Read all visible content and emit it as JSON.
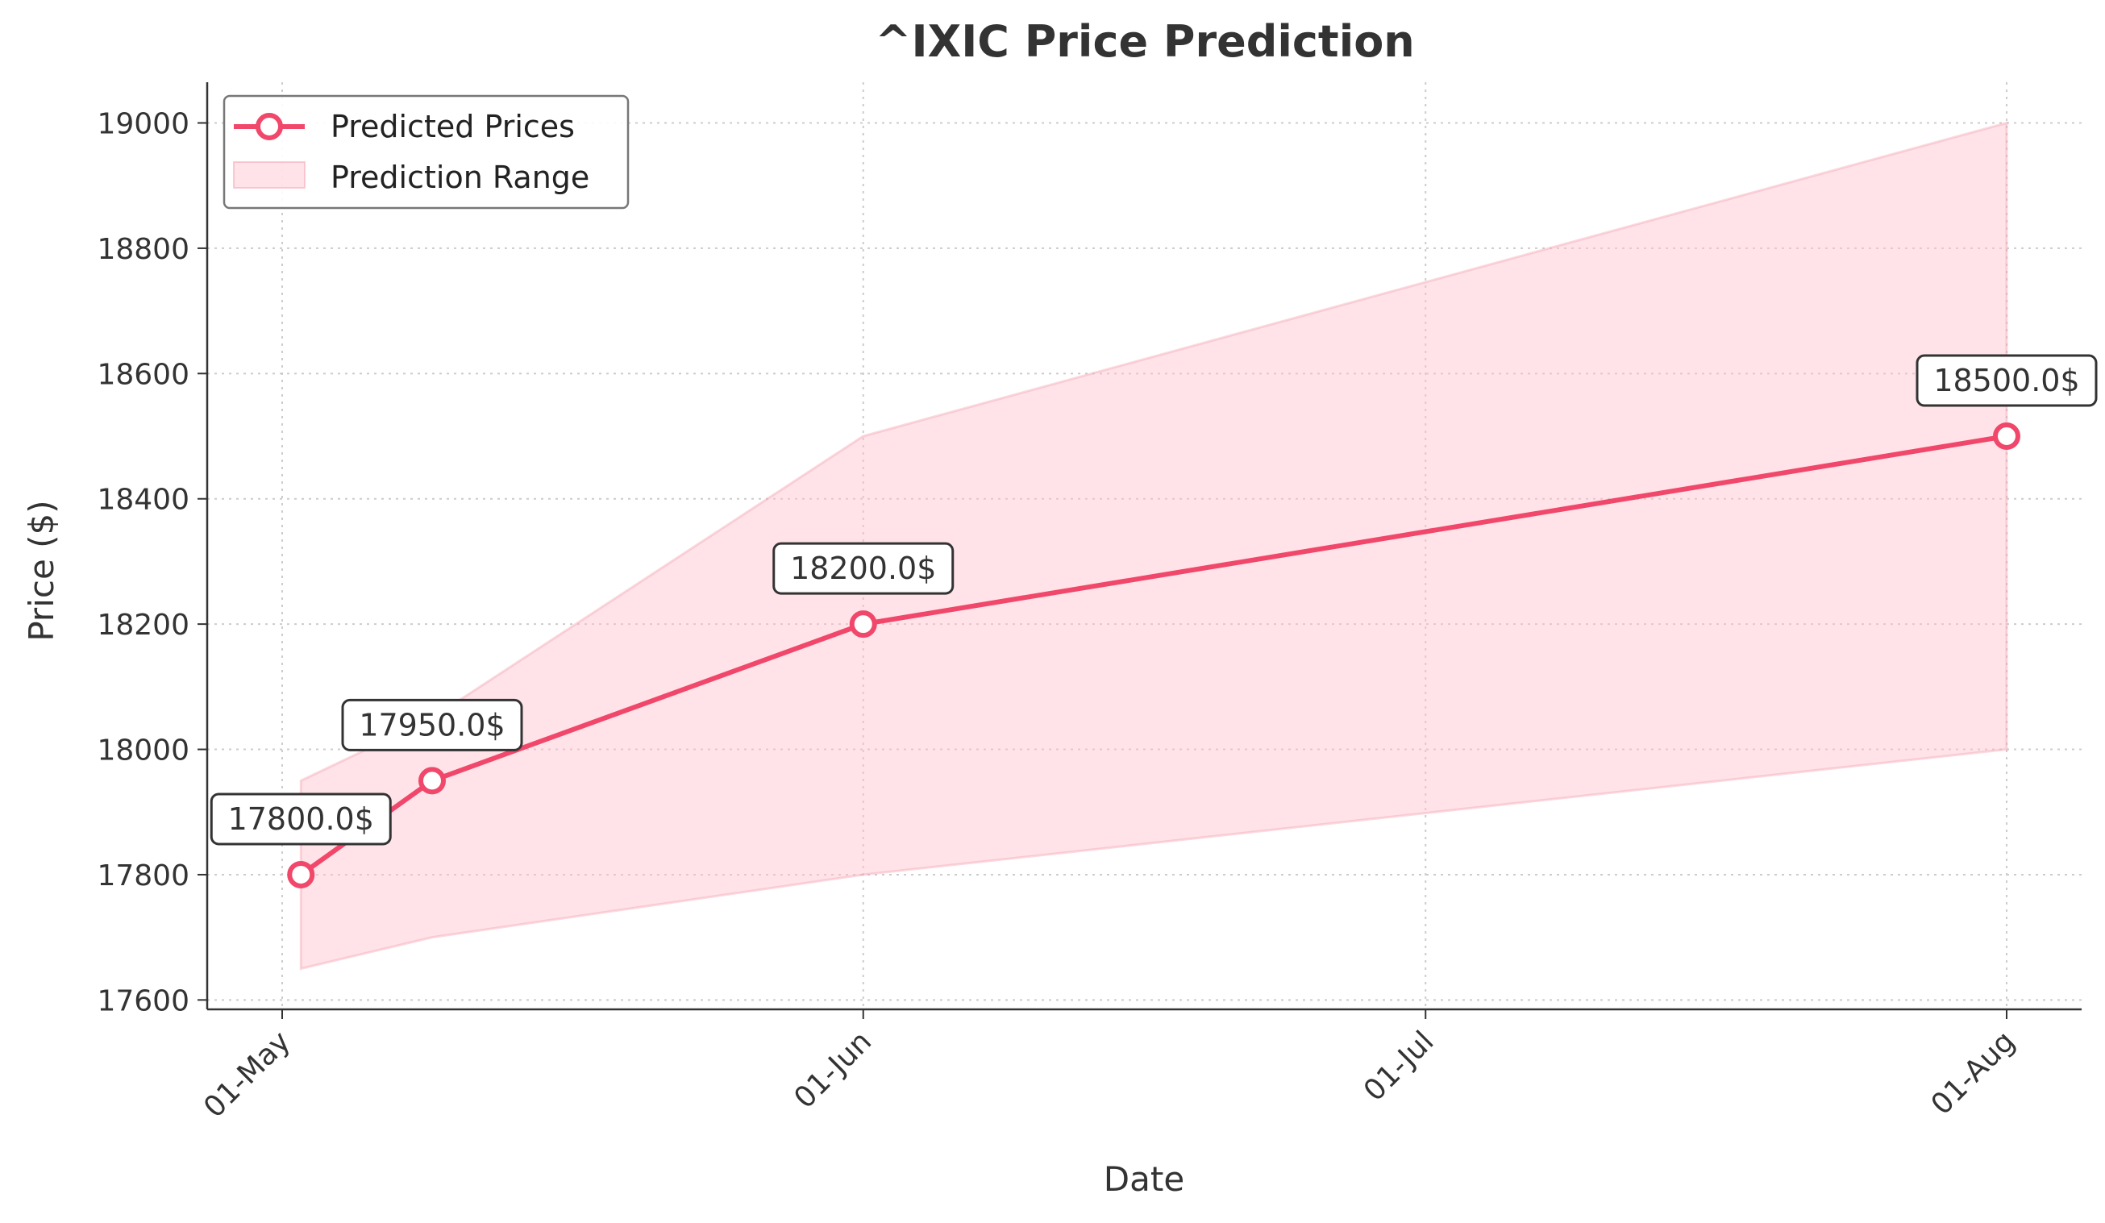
{
  "chart_data": {
    "type": "line",
    "title": "^IXIC Price Prediction",
    "xlabel": "Date",
    "ylabel": "Price ($)",
    "x_ticks": [
      {
        "date": "2024-05-01",
        "label": "01-May"
      },
      {
        "date": "2024-06-01",
        "label": "01-Jun"
      },
      {
        "date": "2024-07-01",
        "label": "01-Jul"
      },
      {
        "date": "2024-08-01",
        "label": "01-Aug"
      }
    ],
    "y_ticks": [
      17600,
      17800,
      18000,
      18200,
      18400,
      18600,
      18800,
      19000
    ],
    "xlim": [
      "2024-04-27",
      "2024-08-05"
    ],
    "ylim": [
      17585,
      19065
    ],
    "grid": true,
    "legend_position": "top-left",
    "series": [
      {
        "name": "Predicted Prices",
        "kind": "line",
        "color": "#f0476a",
        "points": [
          {
            "x": "2024-05-02",
            "y": 17800,
            "label": "17800.0$"
          },
          {
            "x": "2024-05-09",
            "y": 17950,
            "label": "17950.0$"
          },
          {
            "x": "2024-06-01",
            "y": 18200,
            "label": "18200.0$"
          },
          {
            "x": "2024-08-01",
            "y": 18500,
            "label": "18500.0$"
          }
        ]
      },
      {
        "name": "Prediction Range",
        "kind": "band",
        "color": "#ffc0cb",
        "x": [
          "2024-05-02",
          "2024-05-09",
          "2024-06-01",
          "2024-08-01"
        ],
        "lower": [
          17650,
          17700,
          17800,
          18000
        ],
        "upper": [
          17950,
          18050,
          18500,
          19000
        ]
      }
    ]
  }
}
